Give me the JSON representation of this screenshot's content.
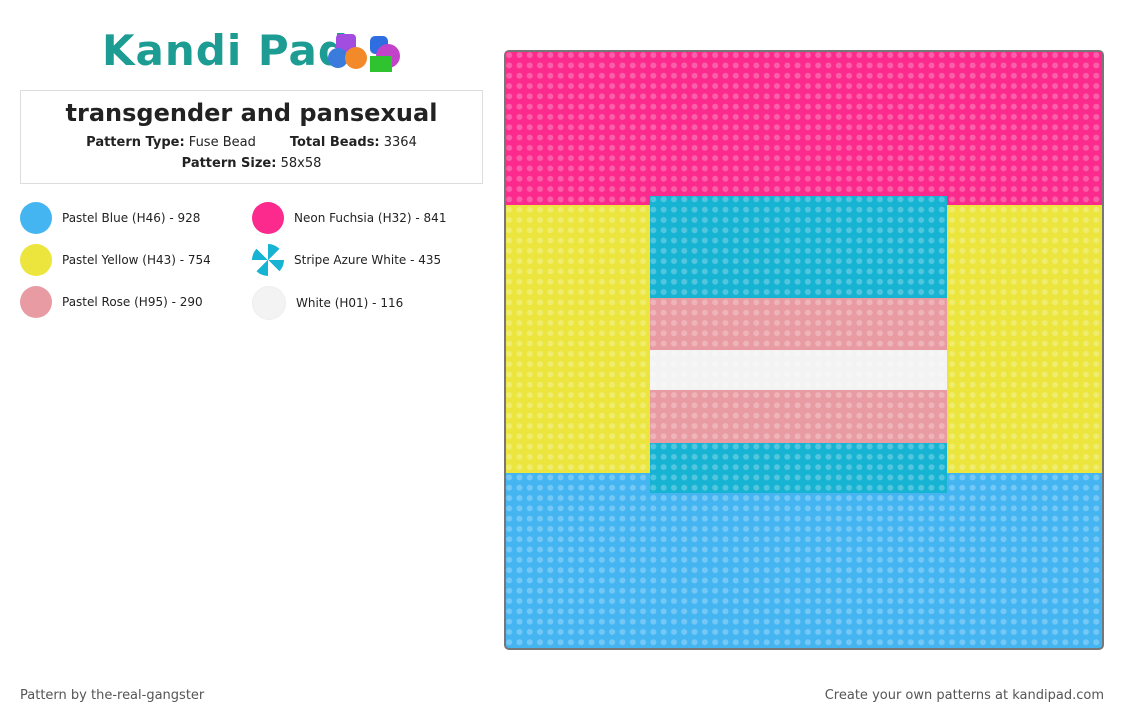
{
  "header": {
    "logo": "Kandi Pad"
  },
  "pattern": {
    "title": "transgender and pansexual",
    "type_label": "Pattern Type:",
    "type_value": "Fuse Bead",
    "beads_label": "Total Beads:",
    "beads_value": "3364",
    "size_label": "Pattern Size:",
    "size_value": "58x58"
  },
  "legend": [
    {
      "label": "Pastel Blue (H46) - 928",
      "color": "#45b5f2"
    },
    {
      "label": "Neon Fuchsia (H32) - 841",
      "color": "#fb2a8c"
    },
    {
      "label": "Pastel Yellow (H43) - 754",
      "color": "#ebe53d"
    },
    {
      "label": "Stripe Azure White - 435",
      "color": "#17b3d3"
    },
    {
      "label": "Pastel Rose (H95) - 290",
      "color": "#e89ba2"
    },
    {
      "label": "White (H01) - 116",
      "color": "#f3f3f3"
    }
  ],
  "footer": {
    "credit": "Pattern by the-real-gangster",
    "promo": "Create your own patterns at kandipad.com"
  }
}
